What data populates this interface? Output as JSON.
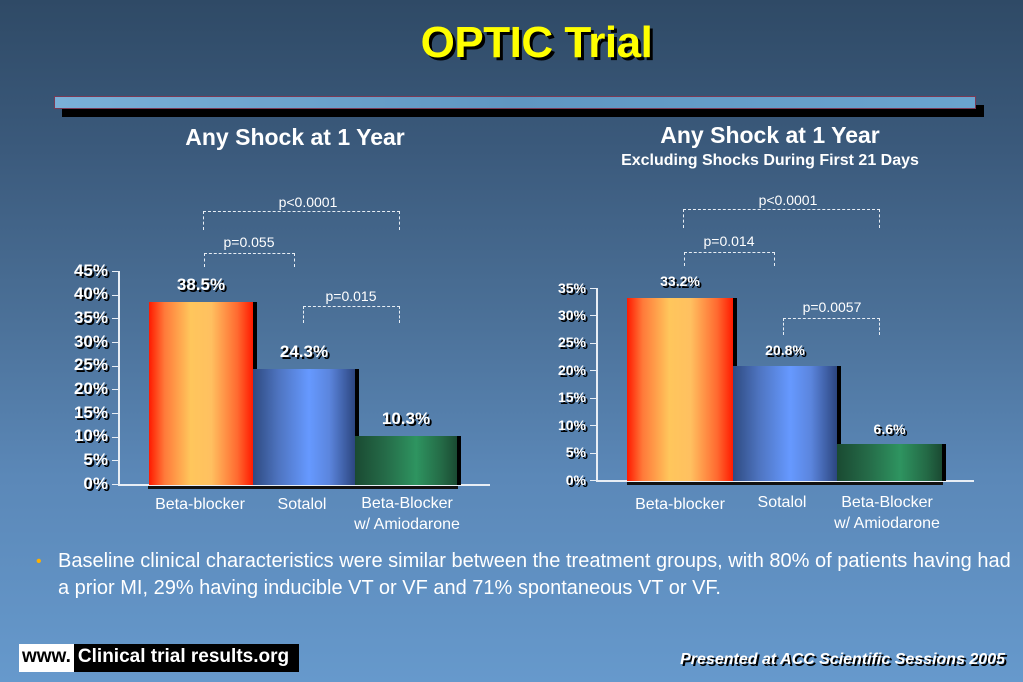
{
  "slide": {
    "title": "OPTIC Trial",
    "bullet": "Baseline clinical characteristics were similar between the treatment groups, with 80% of patients having had a prior MI, 29% having inducible VT or VF and 71% spontaneous VT or VF.",
    "bullet_icon": "bullet-dot",
    "footer_www": "www.",
    "footer_site": "Clinical trial results.org",
    "footer_presented": "Presented at ACC Scientific Sessions 2005"
  },
  "charts": {
    "left": {
      "title": "Any Shock at 1 Year",
      "subtitle": "",
      "y_ticks": [
        "45%",
        "40%",
        "35%",
        "30%",
        "25%",
        "20%",
        "15%",
        "10%",
        "5%",
        "0%"
      ],
      "categories": [
        "Beta-blocker",
        "Sotalol",
        "Beta-Blocker\nw/ Amiodarone"
      ],
      "cat_line1": [
        "Beta-blocker",
        "Sotalol",
        "Beta-Blocker"
      ],
      "cat_line2": [
        "",
        "",
        "w/ Amiodarone"
      ],
      "value_labels": [
        "38.5%",
        "24.3%",
        "10.3%"
      ],
      "p_values": {
        "bb_vs_amio": "p<0.0001",
        "bb_vs_sotalol": "p=0.055",
        "sotalol_vs_amio": "p=0.015"
      }
    },
    "right": {
      "title": "Any Shock at 1 Year",
      "subtitle": "Excluding Shocks During First 21 Days",
      "y_ticks": [
        "35%",
        "30%",
        "25%",
        "20%",
        "15%",
        "10%",
        "5%",
        "0%"
      ],
      "categories": [
        "Beta-blocker",
        "Sotalol",
        "Beta-Blocker\nw/ Amiodarone"
      ],
      "cat_line1": [
        "Beta-blocker",
        "Sotalol",
        "Beta-Blocker"
      ],
      "cat_line2": [
        "",
        "",
        "w/ Amiodarone"
      ],
      "value_labels": [
        "33.2%",
        "20.8%",
        "6.6%"
      ],
      "p_values": {
        "bb_vs_amio": "p<0.0001",
        "bb_vs_sotalol": "p=0.014",
        "sotalol_vs_amio": "p=0.0057"
      }
    }
  },
  "colors": {
    "title": "#ffff00",
    "bar_beta_blocker": "#ff7a3a",
    "bar_sotalol": "#6699ff",
    "bar_amiodarone": "#2e9460",
    "bullet": "#ffb000"
  },
  "chart_data": [
    {
      "type": "bar",
      "title": "Any Shock at 1 Year",
      "categories": [
        "Beta-blocker",
        "Sotalol",
        "Beta-Blocker w/ Amiodarone"
      ],
      "values": [
        38.5,
        24.3,
        10.3
      ],
      "xlabel": "",
      "ylabel": "",
      "ylim": [
        0,
        45
      ],
      "yticks_step": 5,
      "unit": "%",
      "annotations": [
        {
          "between": [
            "Beta-blocker",
            "Beta-Blocker w/ Amiodarone"
          ],
          "text": "p<0.0001"
        },
        {
          "between": [
            "Beta-blocker",
            "Sotalol"
          ],
          "text": "p=0.055"
        },
        {
          "between": [
            "Sotalol",
            "Beta-Blocker w/ Amiodarone"
          ],
          "text": "p=0.015"
        }
      ],
      "grid": false,
      "legend": "none"
    },
    {
      "type": "bar",
      "title": "Any Shock at 1 Year",
      "subtitle": "Excluding Shocks During First 21 Days",
      "categories": [
        "Beta-blocker",
        "Sotalol",
        "Beta-Blocker w/ Amiodarone"
      ],
      "values": [
        33.2,
        20.8,
        6.6
      ],
      "xlabel": "",
      "ylabel": "",
      "ylim": [
        0,
        35
      ],
      "yticks_step": 5,
      "unit": "%",
      "annotations": [
        {
          "between": [
            "Beta-blocker",
            "Beta-Blocker w/ Amiodarone"
          ],
          "text": "p<0.0001"
        },
        {
          "between": [
            "Beta-blocker",
            "Sotalol"
          ],
          "text": "p=0.014"
        },
        {
          "between": [
            "Sotalol",
            "Beta-Blocker w/ Amiodarone"
          ],
          "text": "p=0.0057"
        }
      ],
      "grid": false,
      "legend": "none"
    }
  ]
}
